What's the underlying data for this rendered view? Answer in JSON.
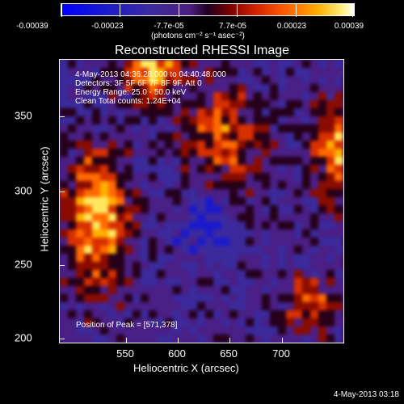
{
  "colorbar": {
    "tick_labels": [
      "-0.00039",
      "-0.00023",
      "-7.7e-05",
      "7.7e-05",
      "0.00023",
      "0.00039"
    ],
    "units_label": "(photons cm⁻² s⁻¹ asec⁻²)"
  },
  "plot": {
    "title": "Reconstructed RHESSI Image",
    "info_lines": [
      "4-May-2013 04:36:28.000 to 04:40:48.000",
      "Detectors: 3F 5F 6F 7F 8F 9F, Att 0",
      "Energy Range: 25.0 - 50.0 keV",
      "Clean    Total counts: 1.24E+04"
    ],
    "peak_text": "Position of Peak = [571,378]",
    "xlabel": "Heliocentric X (arcsec)",
    "ylabel": "Heliocentric Y (arcsec)",
    "x_ticks": [
      "550",
      "600",
      "650",
      "700"
    ],
    "y_ticks": [
      "200",
      "250",
      "300",
      "350"
    ],
    "timestamp": "4-May-2013 03:18"
  },
  "colors": {
    "low": "#0000ff",
    "mid": "#3c1d7f",
    "high": "#ff3a00",
    "peak": "#ffff66"
  }
}
